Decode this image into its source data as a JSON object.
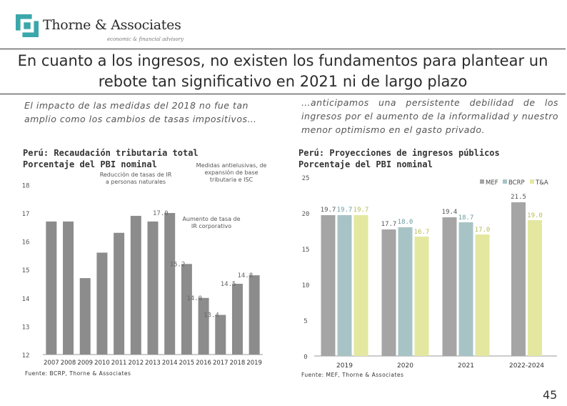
{
  "header": {
    "brand": "Thorne & Associates",
    "tagline": "economic & financial advisory",
    "title_line1": "En cuanto a los ingresos, no existen los fundamentos para plantear un",
    "title_line2": "rebote tan significativo en 2021 ni de largo plazo"
  },
  "left_panel": {
    "subtitle": "El impacto de las medidas del 2018 no fue tan amplio como los cambios de tasas impositivos…",
    "title_line1": "Perú: Recaudación tributaria total",
    "title_line2": "Porcentaje del PBI nominal",
    "source": "Fuente: BCRP, Thorne & Associates"
  },
  "right_panel": {
    "subtitle": "…anticipamos una persistente debilidad de los ingresos por el aumento de la informalidad y nuestro menor optimismo en el gasto privado.",
    "title_line1": "Perú: Proyecciones de ingresos públicos",
    "title_line2": "Porcentaje del PBI nominal",
    "source": "Fuente: MEF, Thorne & Associates"
  },
  "colors": {
    "tax_bar": "#8c8c8c",
    "mef": "#a5a5a5",
    "bcrp": "#a7c3c6",
    "tya": "#e4e7a0",
    "logo": "#3ba7aa"
  },
  "page_number": "45",
  "chart_data": [
    {
      "type": "bar",
      "title": "Perú: Recaudación tributaria total — Porcentaje del PBI nominal",
      "categories": [
        "2007",
        "2008",
        "2009",
        "2010",
        "2011",
        "2012",
        "2013",
        "2014",
        "2015",
        "2016",
        "2017",
        "2018",
        "2019"
      ],
      "values": [
        16.7,
        16.7,
        14.7,
        15.6,
        16.3,
        16.9,
        16.7,
        17.0,
        15.2,
        14.0,
        13.4,
        14.5,
        14.8
      ],
      "data_labels": {
        "7": "17.0",
        "8": "15.2",
        "9": "14.0",
        "10": "13.4",
        "11": "14.5",
        "12": "14.8"
      },
      "yticks": [
        12,
        13,
        14,
        15,
        16,
        17,
        18
      ],
      "ylim": [
        12,
        18.5
      ],
      "annotations": [
        {
          "text_lines": [
            "Reducción de tasas de IR",
            "a personas naturales"
          ],
          "near_category": "2010"
        },
        {
          "text_lines": [
            "Medidas antielusivas, de",
            "expansión de base",
            "tributaria e ISC"
          ],
          "near_category": "2014"
        },
        {
          "text_lines": [
            "Aumento de tasa de",
            "IR corporativo"
          ],
          "near_category": "2015"
        }
      ],
      "legend": "none"
    },
    {
      "type": "bar",
      "title": "Perú: Proyecciones de ingresos públicos — Porcentaje del PBI nominal",
      "categories": [
        "2019",
        "2020",
        "2021",
        "2022-2024"
      ],
      "series": [
        {
          "name": "MEF",
          "values": [
            19.7,
            17.7,
            19.4,
            21.5
          ],
          "labels": [
            "19.7",
            "17.7",
            "19.4",
            "21.5"
          ]
        },
        {
          "name": "BCRP",
          "values": [
            19.7,
            18.0,
            18.7,
            null
          ],
          "labels": [
            "19.7",
            "18.0",
            "18.7",
            ""
          ]
        },
        {
          "name": "T&A",
          "values": [
            19.7,
            16.7,
            17.0,
            19.0
          ],
          "labels": [
            "19.7",
            "16.7",
            "17.0",
            "19.0"
          ]
        }
      ],
      "yticks": [
        0,
        5,
        10,
        15,
        20,
        25
      ],
      "ylim": [
        0,
        25
      ],
      "legend": "top-right"
    }
  ]
}
